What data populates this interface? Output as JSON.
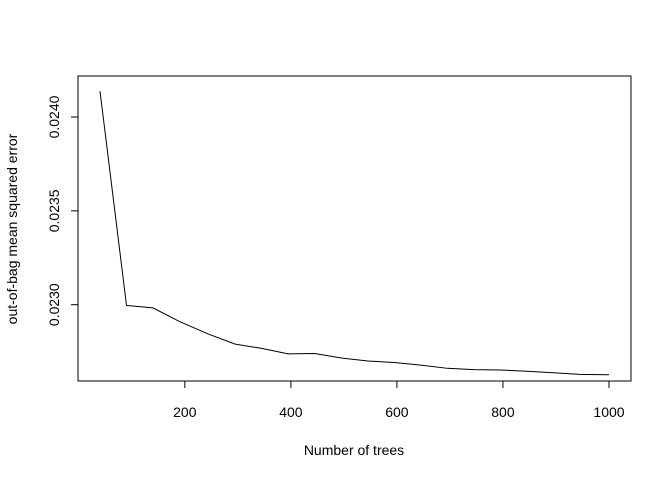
{
  "chart_data": {
    "type": "line",
    "title": "",
    "xlabel": "Number of trees",
    "ylabel": "out-of-bag mean squared error",
    "xlim": [
      40,
      1000
    ],
    "ylim": [
      0.022652,
      0.02416
    ],
    "grid": false,
    "legend": "none",
    "x_ticks": [
      200,
      400,
      600,
      800,
      1000
    ],
    "x_tick_labels": [
      "200",
      "400",
      "600",
      "800",
      "1000"
    ],
    "y_ticks": [
      0.023,
      0.0235,
      0.024
    ],
    "y_tick_labels": [
      "0.0230",
      "0.0235",
      "0.0240"
    ],
    "line_color": "#000000",
    "series": [
      {
        "x": [
          40,
          90,
          140,
          190,
          245,
          295,
          345,
          395,
          445,
          495,
          545,
          595,
          645,
          695,
          745,
          795,
          845,
          895,
          945,
          1000
        ],
        "values": [
          0.024138,
          0.022996,
          0.022983,
          0.02291,
          0.022843,
          0.02279,
          0.022767,
          0.022738,
          0.02274,
          0.022716,
          0.0227,
          0.022692,
          0.022678,
          0.022661,
          0.022654,
          0.022652,
          0.022645,
          0.022637,
          0.022629,
          0.022627
        ]
      }
    ]
  }
}
